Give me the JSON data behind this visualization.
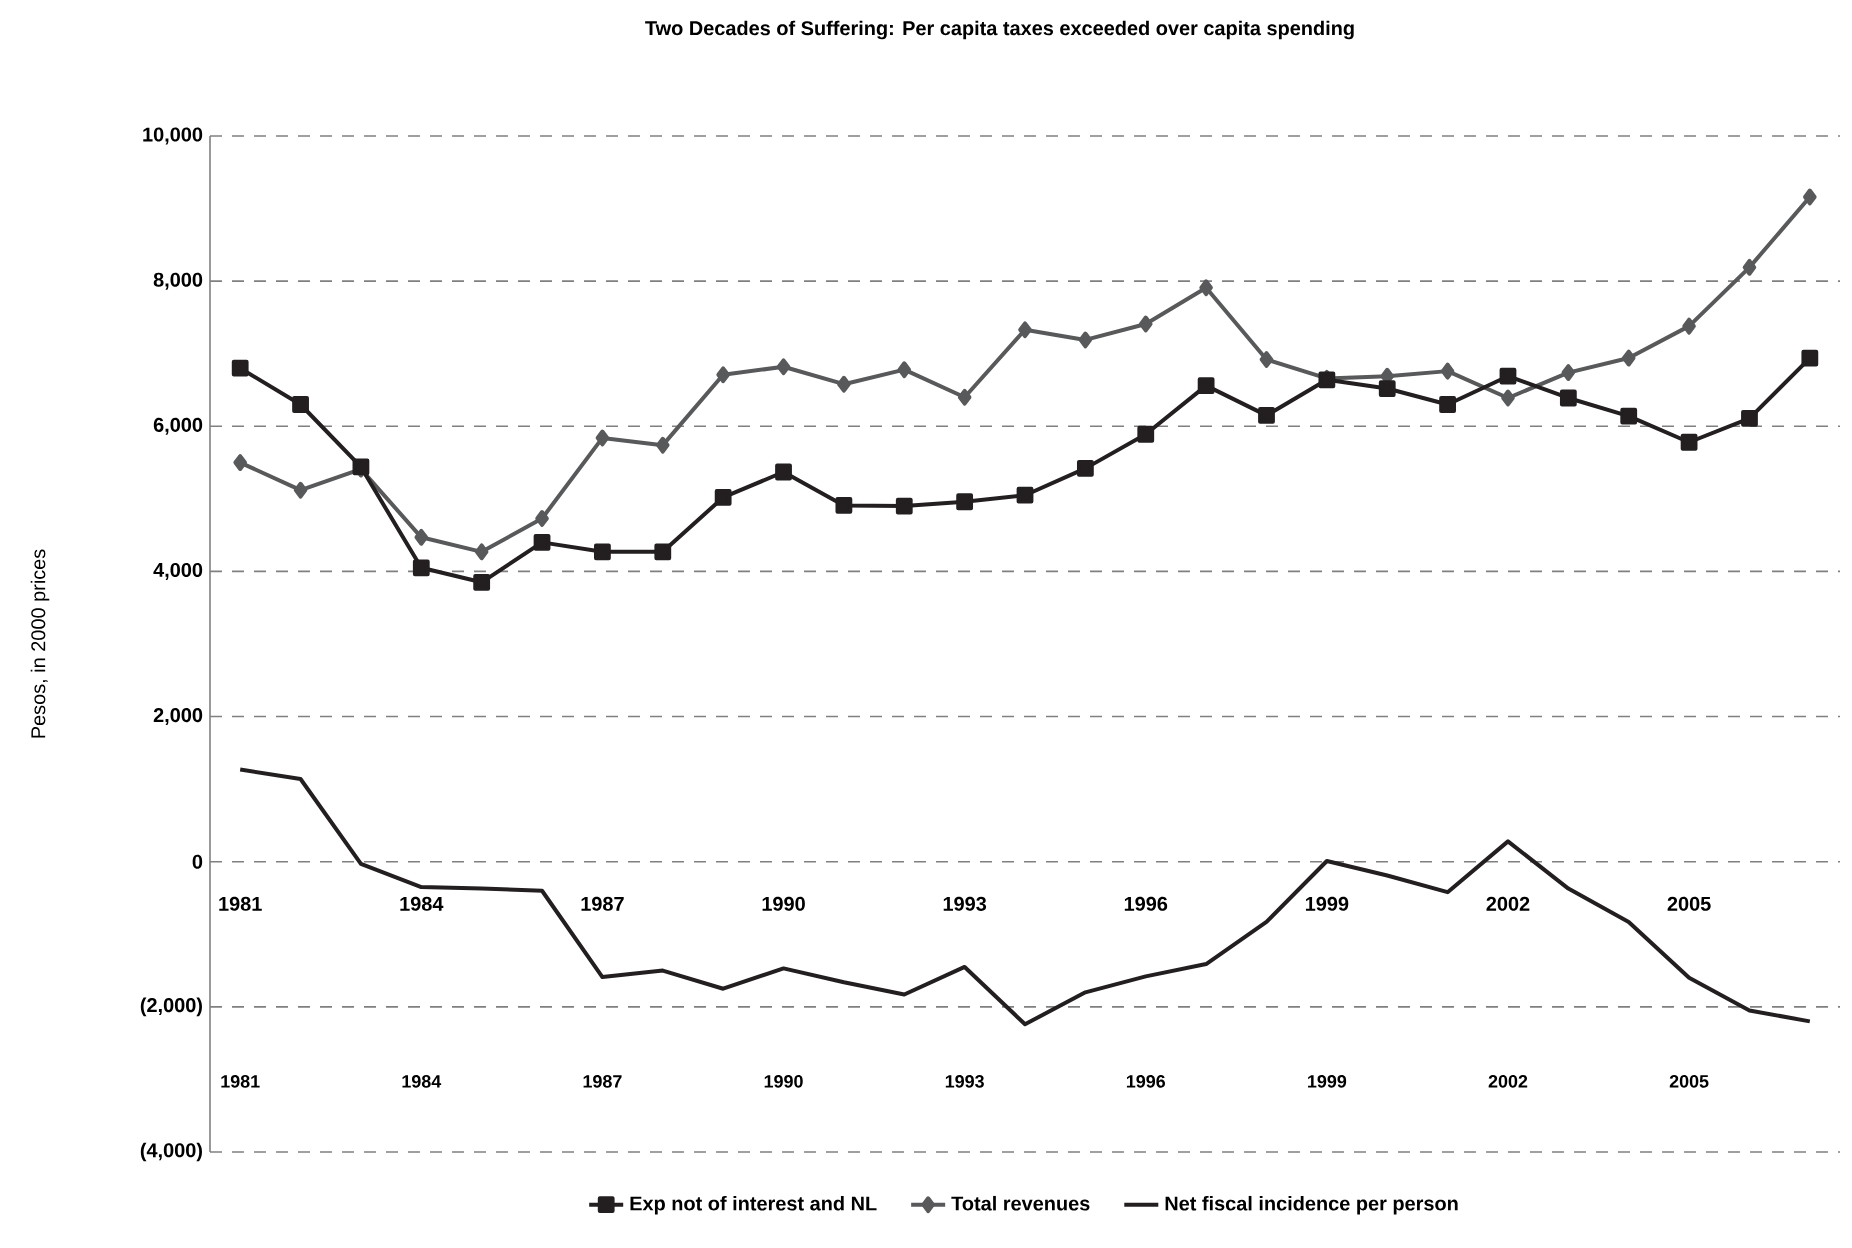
{
  "chart_data": {
    "type": "line",
    "title": "Two Decades of Suffering: Per capita taxes exceeded over capita spending",
    "ylabel": "Pesos, in 2000 prices",
    "x": [
      1981,
      1982,
      1983,
      1984,
      1985,
      1986,
      1987,
      1988,
      1989,
      1990,
      1991,
      1992,
      1993,
      1994,
      1995,
      1996,
      1997,
      1998,
      1999,
      2000,
      2001,
      2002,
      2003,
      2004,
      2005,
      2006,
      2007
    ],
    "xlim": [
      1980.5,
      2007.5
    ],
    "xticks": [
      1981,
      1984,
      1987,
      1990,
      1993,
      1996,
      1999,
      2002,
      2005
    ],
    "x2lim": [
      1980.5,
      2007.5
    ],
    "x2ticks": [
      1981,
      1984,
      1987,
      1990,
      1993,
      1996,
      1999,
      2002,
      2005
    ],
    "ylim": [
      -4000,
      10000
    ],
    "yticks": [
      {
        "value": -4000,
        "label": "(4,000)"
      },
      {
        "value": -2000,
        "label": "(2,000)"
      },
      0,
      {
        "value": 2000,
        "label": "2,000"
      },
      {
        "value": 4000,
        "label": "4,000"
      },
      {
        "value": 6000,
        "label": "6,000"
      },
      {
        "value": 8000,
        "label": "8,000"
      },
      {
        "value": 10000,
        "label": "10,000"
      }
    ],
    "grid": "y",
    "legend": "bottom",
    "line_style": "solid",
    "series": [
      {
        "name": "Exp not of interest and NL",
        "color": "#231f20",
        "marker": "square",
        "values": [
          6800,
          6300,
          5440,
          4050,
          3850,
          4400,
          4270,
          4270,
          5020,
          5370,
          4910,
          4900,
          4960,
          5050,
          5420,
          5890,
          6560,
          6150,
          6640,
          6520,
          6300,
          6690,
          6390,
          6140,
          5780,
          6110,
          6940
        ]
      },
      {
        "name": "Total revenues",
        "color": "#58595b",
        "marker": "diamond",
        "values": [
          5500,
          5120,
          5410,
          4470,
          4270,
          4730,
          5840,
          5740,
          6710,
          6820,
          6580,
          6780,
          6400,
          7330,
          7190,
          7410,
          7910,
          6920,
          6660,
          6690,
          6760,
          6390,
          6740,
          6940,
          7380,
          8190,
          9160
        ]
      },
      {
        "name": "Net fiscal incidence per person",
        "color": "#231f20",
        "marker": "none",
        "values": [
          1270,
          1140,
          -30,
          -350,
          -370,
          -400,
          -1590,
          -1500,
          -1750,
          -1470,
          -1660,
          -1830,
          -1450,
          -2240,
          -1800,
          -1580,
          -1410,
          -830,
          10,
          -190,
          -420,
          280,
          -370,
          -830,
          -1600,
          -2050,
          -2200
        ]
      }
    ]
  }
}
